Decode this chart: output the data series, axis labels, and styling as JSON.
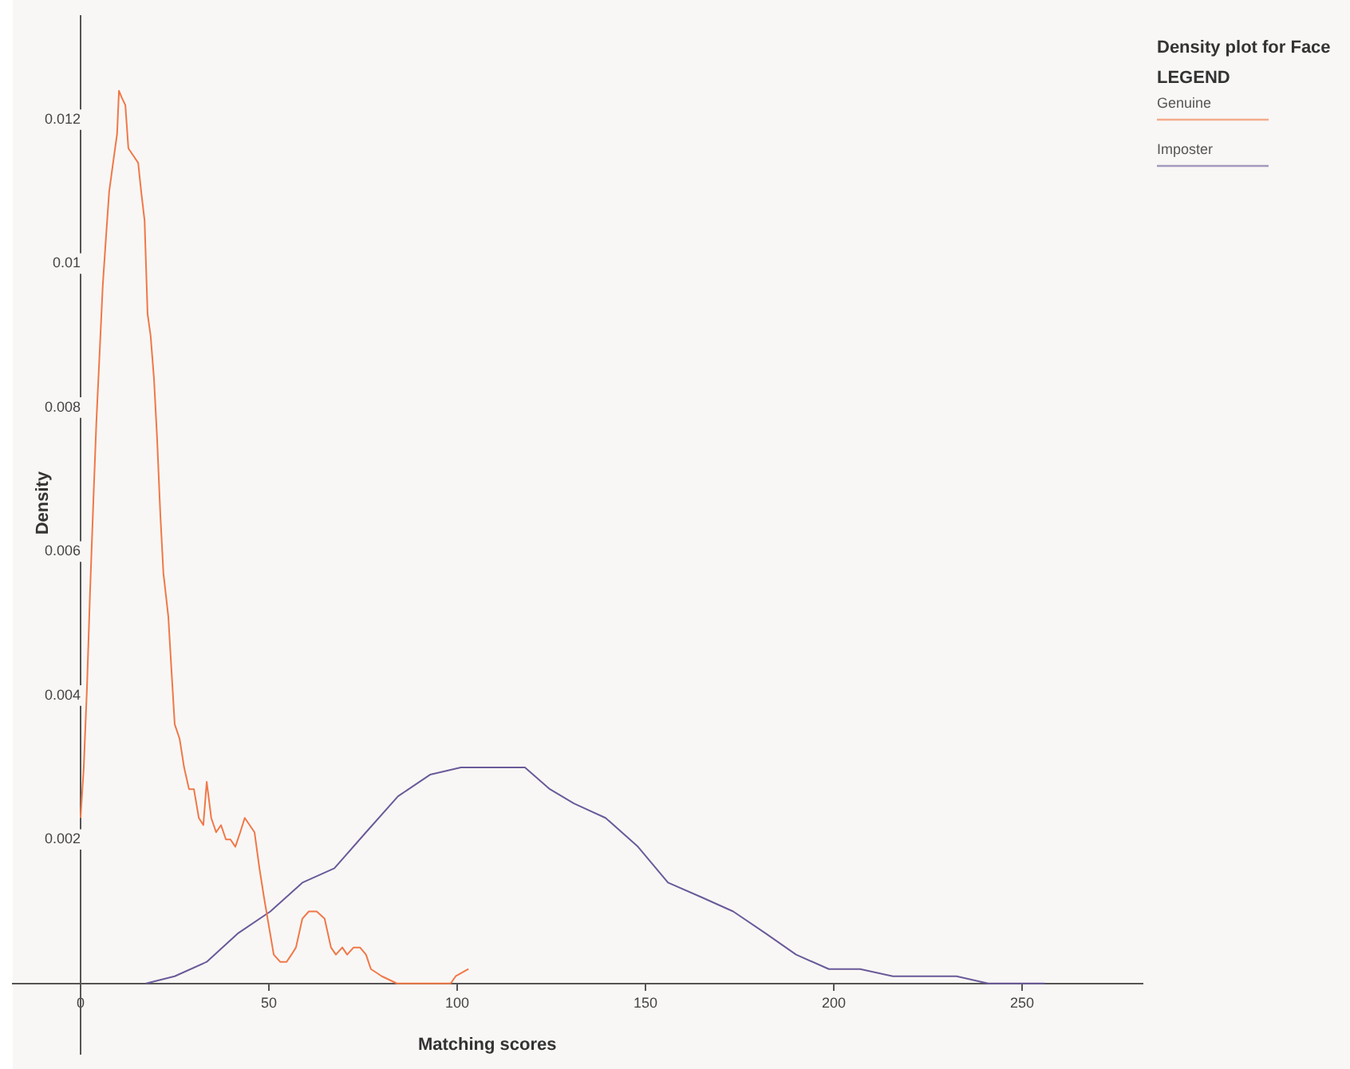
{
  "chart_data": {
    "type": "line",
    "title": "Density plot for Face",
    "legend_title": "LEGEND",
    "xlabel": "Matching scores",
    "ylabel": "Density",
    "xlim": [
      -18,
      282
    ],
    "ylim": [
      -0.00098,
      0.01344
    ],
    "xticks": [
      0,
      50,
      100,
      150,
      200,
      250
    ],
    "yticks": [
      0.002,
      0.004,
      0.006,
      0.008,
      0.01,
      0.012
    ],
    "grid": false,
    "legend": "top right",
    "series": [
      {
        "name": "Genuine",
        "color": "#f07848",
        "x": [
          0,
          0.85,
          1.7,
          2.5,
          3.4,
          4.2,
          5.1,
          5.9,
          6.8,
          7.6,
          8.9,
          9.7,
          10.2,
          11,
          11.9,
          12.7,
          14,
          15.3,
          16.1,
          17,
          17.8,
          18.6,
          19.5,
          20.3,
          21.2,
          22,
          23.3,
          24.2,
          25,
          26.3,
          27.5,
          28.8,
          30.1,
          31.4,
          32.6,
          33.5,
          34.7,
          36,
          37.3,
          38.6,
          39.8,
          41.1,
          42.4,
          43.6,
          44.9,
          46.2,
          47.5,
          48.7,
          50,
          51.3,
          53,
          54.7,
          56,
          57.2,
          58.9,
          60.6,
          62.7,
          64.8,
          66.5,
          67.8,
          69.5,
          70.8,
          72.5,
          74.2,
          75.8,
          77.1,
          80,
          84,
          92.8,
          98.3,
          99.6,
          103
        ],
        "values": [
          0.0023,
          0.003,
          0.0041,
          0.0054,
          0.0067,
          0.0078,
          0.0088,
          0.0097,
          0.0104,
          0.011,
          0.0115,
          0.0118,
          0.0124,
          0.0123,
          0.0122,
          0.0116,
          0.0115,
          0.0114,
          0.011,
          0.0106,
          0.0093,
          0.009,
          0.0084,
          0.0076,
          0.0065,
          0.0057,
          0.0051,
          0.0043,
          0.0036,
          0.0034,
          0.003,
          0.0027,
          0.0027,
          0.0023,
          0.0022,
          0.0028,
          0.0023,
          0.0021,
          0.0022,
          0.002,
          0.002,
          0.0019,
          0.0021,
          0.0023,
          0.0022,
          0.0021,
          0.0016,
          0.0012,
          0.0008,
          0.0004,
          0.0003,
          0.0003,
          0.0004,
          0.0005,
          0.0009,
          0.001,
          0.001,
          0.0009,
          0.0005,
          0.0004,
          0.0005,
          0.0004,
          0.0005,
          0.0005,
          0.0004,
          0.0002,
          0.0001,
          0,
          0,
          0,
          0.0001,
          0.0002
        ]
      },
      {
        "name": "Imposter",
        "color": "#6a5a9a",
        "x": [
          17.4,
          25,
          33.5,
          41.9,
          50.4,
          58.9,
          67.4,
          75.8,
          84.3,
          92.8,
          101,
          110,
          118,
          124.6,
          131,
          139.4,
          148,
          156,
          164.8,
          173.3,
          181.8,
          190,
          198.7,
          207,
          215.7,
          224,
          232.6,
          241,
          249.6,
          256
        ],
        "values": [
          0,
          0.0001,
          0.0003,
          0.0007,
          0.001,
          0.0014,
          0.0016,
          0.0021,
          0.0026,
          0.0029,
          0.003,
          0.003,
          0.003,
          0.0027,
          0.0025,
          0.0023,
          0.0019,
          0.0014,
          0.0012,
          0.001,
          0.0007,
          0.0004,
          0.0002,
          0.0002,
          0.0001,
          0.0001,
          0.0001,
          0,
          0,
          0
        ]
      }
    ]
  }
}
